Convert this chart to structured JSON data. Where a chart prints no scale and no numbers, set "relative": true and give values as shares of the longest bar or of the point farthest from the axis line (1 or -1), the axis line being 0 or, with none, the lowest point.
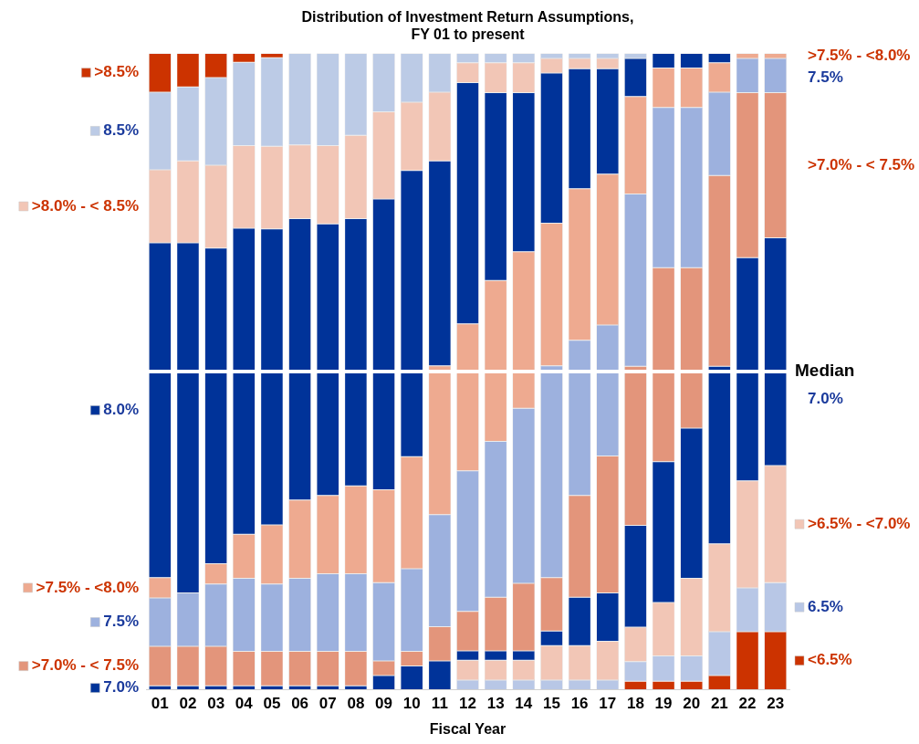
{
  "chart_data": {
    "type": "bar",
    "title": "Distribution of Investment Return Assumptions,\nFY 01 to present",
    "xlabel": "Fiscal Year",
    "legend": "left",
    "stacked": true,
    "relative": true,
    "categories": [
      "01",
      "02",
      "03",
      "04",
      "05",
      "06",
      "07",
      "08",
      "09",
      "10",
      "11",
      "12",
      "13",
      "14",
      "15",
      "16",
      "17",
      "18",
      "19",
      "20",
      "21",
      "22",
      "23"
    ],
    "series": [
      {
        "name": "<6.5%",
        "color": "#cc3300",
        "values": [
          0,
          0,
          0,
          0,
          0,
          0,
          0,
          0,
          0,
          0,
          0,
          0,
          0,
          0,
          0,
          0,
          0,
          0.013,
          0.013,
          0.013,
          0.022,
          0.091,
          0.091
        ]
      },
      {
        "name": "6.5%",
        "color": "#b8c7e6",
        "values": [
          0,
          0,
          0,
          0,
          0,
          0,
          0,
          0,
          0,
          0,
          0,
          0.015,
          0.015,
          0.015,
          0.015,
          0.015,
          0.015,
          0.031,
          0.04,
          0.04,
          0.069,
          0.069,
          0.077
        ]
      },
      {
        "name": ">6.5% - <7.0%",
        "color": "#f2c6b6",
        "values": [
          0,
          0,
          0,
          0,
          0,
          0,
          0,
          0,
          0,
          0,
          0,
          0.031,
          0.031,
          0.031,
          0.054,
          0.054,
          0.061,
          0.054,
          0.084,
          0.122,
          0.138,
          0.168,
          0.184
        ]
      },
      {
        "name": "7.0%",
        "color": "#003399",
        "values": [
          0.006,
          0.006,
          0.006,
          0.006,
          0.006,
          0.006,
          0.006,
          0.006,
          0.022,
          0.037,
          0.045,
          0.015,
          0.015,
          0.015,
          0.023,
          0.076,
          0.076,
          0.16,
          0.221,
          0.236,
          0.279,
          0.351,
          0.358
        ]
      },
      {
        "name": ">7.0% - < 7.5%",
        "color": "#e3957b",
        "values": [
          0.062,
          0.062,
          0.062,
          0.054,
          0.054,
          0.054,
          0.054,
          0.054,
          0.023,
          0.023,
          0.054,
          0.062,
          0.084,
          0.106,
          0.084,
          0.16,
          0.215,
          0.25,
          0.305,
          0.252,
          0.3,
          0.259,
          0.228
        ]
      },
      {
        "name": "7.5%",
        "color": "#9db1de",
        "values": [
          0.076,
          0.084,
          0.098,
          0.115,
          0.106,
          0.115,
          0.122,
          0.122,
          0.123,
          0.13,
          0.176,
          0.221,
          0.245,
          0.275,
          0.333,
          0.244,
          0.206,
          0.271,
          0.252,
          0.252,
          0.131,
          0.054,
          0.054
        ]
      },
      {
        "name": ">7.5% - <8.0%",
        "color": "#eeaa90",
        "values": [
          0.032,
          0,
          0.032,
          0.069,
          0.093,
          0.123,
          0.123,
          0.138,
          0.146,
          0.176,
          0.234,
          0.231,
          0.253,
          0.246,
          0.224,
          0.238,
          0.237,
          0.153,
          0.062,
          0.062,
          0.046,
          0.008,
          0.008
        ]
      },
      {
        "name": "8.0%",
        "color": "#003399",
        "values": [
          0.526,
          0.55,
          0.496,
          0.481,
          0.465,
          0.442,
          0.427,
          0.42,
          0.457,
          0.45,
          0.322,
          0.379,
          0.295,
          0.25,
          0.236,
          0.189,
          0.166,
          0.06,
          0.023,
          0.023,
          0.015,
          0,
          0
        ]
      },
      {
        "name": ">8.0% - < 8.5%",
        "color": "#f2c6b6",
        "values": [
          0.115,
          0.129,
          0.13,
          0.13,
          0.13,
          0.116,
          0.123,
          0.131,
          0.137,
          0.107,
          0.108,
          0.031,
          0.047,
          0.047,
          0.023,
          0.016,
          0.016,
          0,
          0,
          0,
          0,
          0,
          0
        ]
      },
      {
        "name": "8.5%",
        "color": "#bccbe6",
        "values": [
          0.122,
          0.116,
          0.138,
          0.131,
          0.139,
          0.144,
          0.145,
          0.129,
          0.092,
          0.077,
          0.061,
          0.015,
          0.015,
          0.015,
          0.008,
          0.008,
          0.008,
          0.008,
          0,
          0,
          0,
          0,
          0
        ]
      },
      {
        "name": ">8.5%",
        "color": "#cc3300",
        "values": [
          0.061,
          0.053,
          0.038,
          0.014,
          0.007,
          0,
          0,
          0,
          0,
          0,
          0,
          0,
          0,
          0,
          0,
          0,
          0,
          0,
          0,
          0,
          0,
          0,
          0
        ]
      }
    ],
    "ref_lines": [
      {
        "axis": "y",
        "value": 0.5,
        "label": "Median",
        "color": "#ffffff"
      }
    ]
  }
}
